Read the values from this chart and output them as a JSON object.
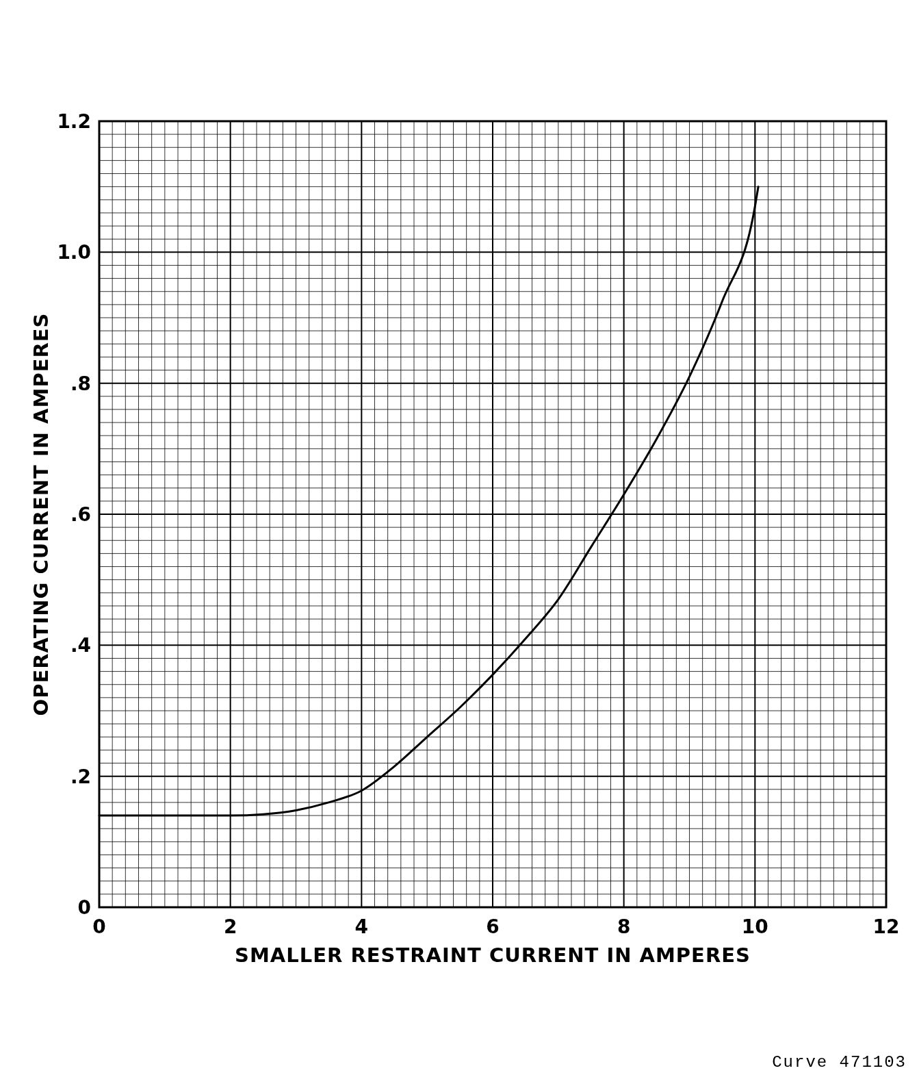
{
  "chart_data": {
    "type": "line",
    "xlabel": "SMALLER RESTRAINT CURRENT IN AMPERES",
    "ylabel": "OPERATING CURRENT IN AMPERES",
    "annotations": [
      "Curve 471103"
    ],
    "xlim": [
      0,
      12
    ],
    "ylim": [
      0,
      1.2
    ],
    "xticks": [
      0,
      2,
      4,
      6,
      8,
      10,
      12
    ],
    "yticks": [
      0,
      {
        "value": 0.2,
        "label": ".2"
      },
      {
        "value": 0.4,
        "label": ".4"
      },
      {
        "value": 0.6,
        "label": ".6"
      },
      {
        "value": 0.8,
        "label": ".8"
      },
      {
        "value": 1.0,
        "label": "1.0"
      },
      {
        "value": 1.2,
        "label": "1.2"
      }
    ],
    "grid": true,
    "line_style": "solid",
    "series": [
      {
        "color": "#000000",
        "x": [
          0,
          1,
          2,
          2.5,
          3,
          3.5,
          4,
          4.5,
          5,
          5.5,
          6,
          6.5,
          7,
          7.5,
          8,
          8.5,
          9,
          9.5,
          10,
          10.05
        ],
        "values": [
          0.14,
          0.14,
          0.14,
          0.142,
          0.148,
          0.16,
          0.178,
          0.215,
          0.26,
          0.305,
          0.355,
          0.41,
          0.47,
          0.55,
          0.63,
          0.715,
          0.81,
          0.925,
          1.07,
          1.1
        ]
      }
    ]
  }
}
